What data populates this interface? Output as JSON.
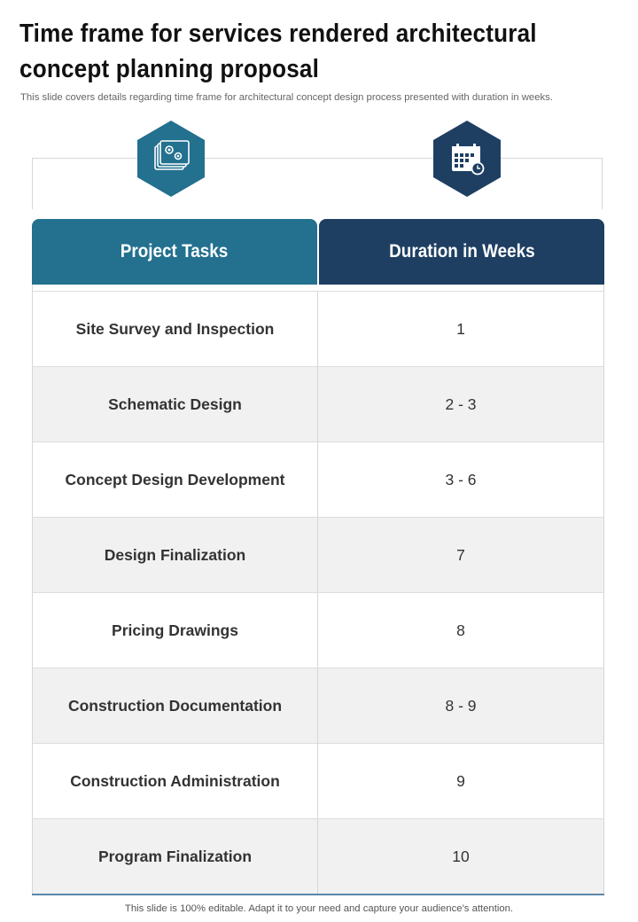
{
  "title": "Time frame for services rendered architectural concept planning proposal",
  "subtitle": "This slide covers details regarding time frame for architectural concept design process presented with duration in weeks.",
  "icons": {
    "left": "blueprint-gears-icon",
    "right": "calendar-clock-icon"
  },
  "colors": {
    "tasks_header": "#23708f",
    "duration_header": "#1e3f62",
    "alt_row": "#f1f1f1"
  },
  "table": {
    "headers": [
      "Project Tasks",
      "Duration in Weeks"
    ],
    "rows": [
      {
        "task": "Site Survey and Inspection",
        "duration": "1"
      },
      {
        "task": "Schematic Design",
        "duration": "2 - 3"
      },
      {
        "task": "Concept Design Development",
        "duration": "3 - 6"
      },
      {
        "task": "Design Finalization",
        "duration": "7"
      },
      {
        "task": "Pricing Drawings",
        "duration": "8"
      },
      {
        "task": "Construction Documentation",
        "duration": "8 - 9"
      },
      {
        "task": "Construction Administration",
        "duration": "9"
      },
      {
        "task": "Program Finalization",
        "duration": "10"
      }
    ]
  },
  "footer": "This slide is 100% editable. Adapt it to your need and capture your audience’s attention."
}
